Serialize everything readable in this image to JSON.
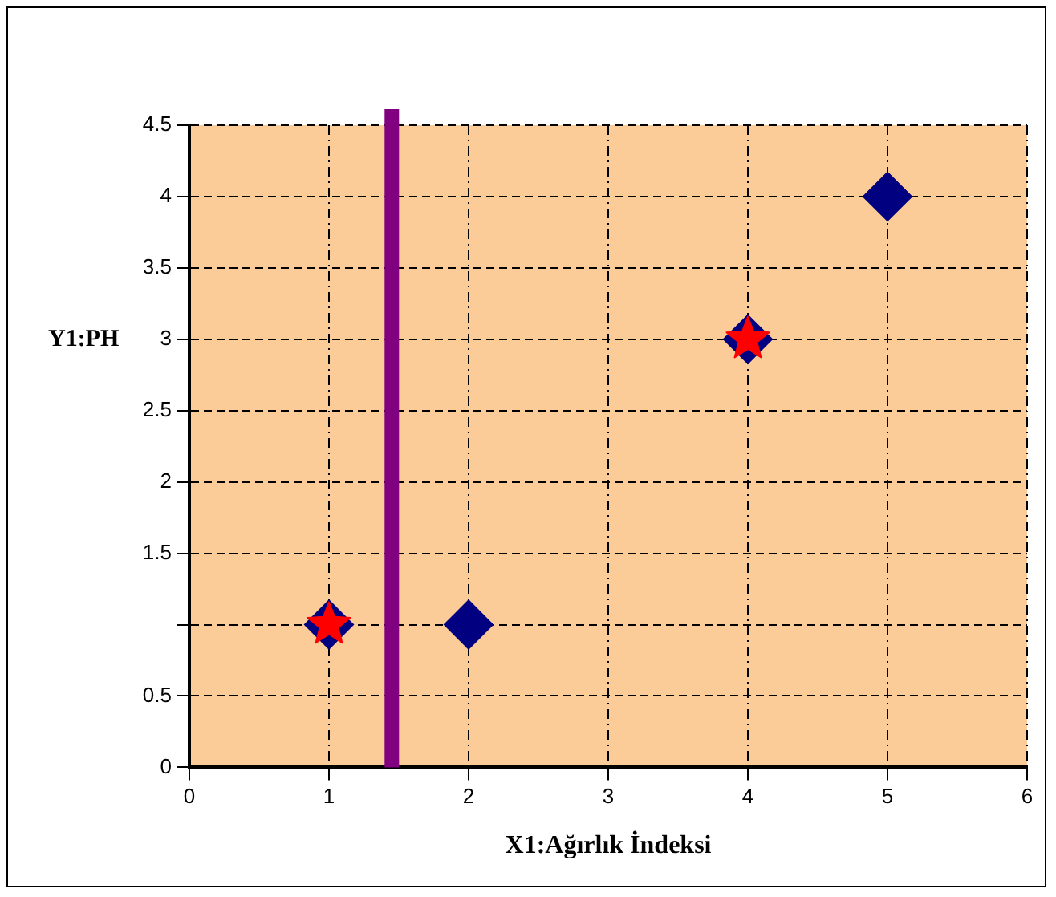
{
  "chart_data": {
    "type": "scatter",
    "xlabel": "X1:Ağırlık İndeksi",
    "ylabel": "Y1:PH",
    "series": [
      {
        "color": "#000080",
        "marker": "diamond",
        "x": [
          1,
          2,
          4,
          5
        ],
        "values": [
          1,
          1,
          3,
          4
        ]
      },
      {
        "color": "#ff0000",
        "marker": "star",
        "x": [
          1,
          4
        ],
        "values": [
          1,
          3
        ]
      }
    ],
    "xlim": [
      0,
      6
    ],
    "xticks": [
      0,
      1,
      2,
      3,
      4,
      5,
      6
    ],
    "ylim": [
      0,
      4.5
    ],
    "yticks": [
      0,
      0.5,
      {
        "value": 1,
        "label": null
      },
      1.5,
      2,
      2.5,
      3,
      3.5,
      4,
      4.5
    ],
    "ref_lines": [
      {
        "axis": "x",
        "value": 1.45,
        "color": "#800080"
      }
    ],
    "grid": true,
    "legend": false
  }
}
